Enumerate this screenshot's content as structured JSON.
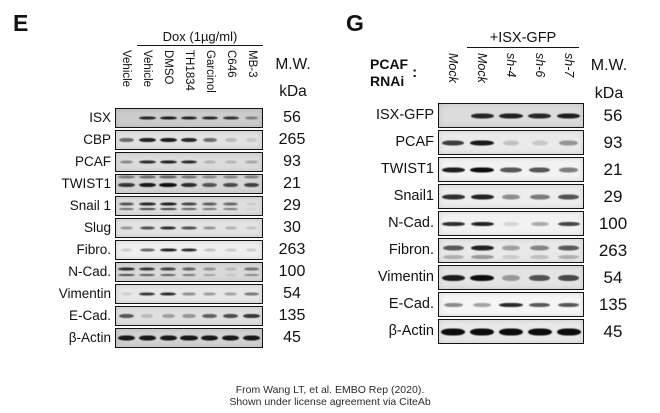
{
  "panels": [
    {
      "label": "E",
      "treatment_header": "Dox (1µg/ml)",
      "mw_header_line1": "M.W.",
      "mw_header_line2": "kDa",
      "lanes": [
        "Vehicle",
        "Vehicle",
        "DMSO",
        "TH1834",
        "Garcinol",
        "C646",
        "MB-3"
      ],
      "rows": [
        {
          "protein": "ISX",
          "mw": "56",
          "bg": "#cccccc",
          "band_h": 3,
          "bands": [
            0,
            0.88,
            0.92,
            0.88,
            0.85,
            0.8,
            0.42
          ]
        },
        {
          "protein": "CBP",
          "mw": "265",
          "bg": "#e2e2e2",
          "band_h": 4,
          "bands": [
            0.55,
            0.9,
            0.93,
            0.88,
            0.55,
            0.18,
            0.12
          ]
        },
        {
          "protein": "PCAF",
          "mw": "93",
          "bg": "#dcdcdc",
          "band_h": 3,
          "bands": [
            0.4,
            0.85,
            0.9,
            0.85,
            0.2,
            0.18,
            0.25
          ]
        },
        {
          "protein": "TWIST1",
          "mw": "21",
          "bg": "#d6d6d6",
          "band_h": 4,
          "bands": [
            0.8,
            0.95,
            1.0,
            0.85,
            0.65,
            0.7,
            0.75
          ],
          "double": [
            55,
            10,
            0.55
          ]
        },
        {
          "protein": "Snail 1",
          "mw": "29",
          "bg": "#dedede",
          "band_h": 3,
          "bands": [
            0.65,
            0.88,
            0.9,
            0.72,
            0.6,
            0.55,
            0.08
          ],
          "double": [
            38,
            68,
            0.85
          ]
        },
        {
          "protein": "Slug",
          "mw": "30",
          "bg": "#e3e3e3",
          "band_h": 3,
          "bands": [
            0.35,
            0.68,
            0.85,
            0.68,
            0.35,
            0.22,
            0.15
          ]
        },
        {
          "protein": "Fibro.",
          "mw": "263",
          "bg": "#efefef",
          "band_h": 3,
          "bands": [
            0.15,
            0.6,
            0.9,
            0.85,
            0.2,
            0.15,
            0.15
          ]
        },
        {
          "protein": "N-Cad.",
          "mw": "100",
          "bg": "#d9d9d9",
          "band_h": 3,
          "bands": [
            0.85,
            0.8,
            0.75,
            0.6,
            0.35,
            0.15,
            0.5
          ],
          "double": [
            35,
            65,
            0.8
          ]
        },
        {
          "protein": "Vimentin",
          "mw": "54",
          "bg": "#e7e7e7",
          "band_h": 3,
          "bands": [
            0.1,
            0.8,
            0.85,
            0.4,
            0.35,
            0.3,
            0.5
          ]
        },
        {
          "protein": "E-Cad.",
          "mw": "135",
          "bg": "#e0e0e0",
          "band_h": 4,
          "bands": [
            0.65,
            0.18,
            0.3,
            0.35,
            0.6,
            0.7,
            0.8
          ]
        },
        {
          "protein": "β-Actin",
          "mw": "45",
          "bg": "#d2d2d2",
          "band_h": 5,
          "bands": [
            0.95,
            0.95,
            0.95,
            0.95,
            0.95,
            0.95,
            0.95
          ]
        }
      ]
    },
    {
      "label": "G",
      "treatment_header": "+ISX-GFP",
      "rnai_label_line1": "PCAF",
      "rnai_label_line2": "RNAi",
      "rnai_colon": ":",
      "mw_header_line1": "M.W.",
      "mw_header_line2": "kDa",
      "lanes": [
        "Mock",
        "Mock",
        "sh-4",
        "sh-6",
        "sh-7"
      ],
      "rows": [
        {
          "protein": "ISX-GFP",
          "mw": "56",
          "bg": "#dcdcdc",
          "band_h": 5,
          "bands": [
            0,
            0.88,
            0.9,
            0.88,
            0.92
          ]
        },
        {
          "protein": "PCAF",
          "mw": "93",
          "bg": "#eaeaea",
          "band_h": 5,
          "bands": [
            0.78,
            0.95,
            0.18,
            0.15,
            0.38
          ]
        },
        {
          "protein": "TWIST1",
          "mw": "21",
          "bg": "#f2f2f2",
          "band_h": 5,
          "bands": [
            0.92,
            1.0,
            0.68,
            0.68,
            0.5
          ]
        },
        {
          "protein": "Snail1",
          "mw": "29",
          "bg": "#ededed",
          "band_h": 5,
          "bands": [
            0.85,
            0.9,
            0.42,
            0.5,
            0.68
          ]
        },
        {
          "protein": "N-Cad.",
          "mw": "100",
          "bg": "#f2f2f2",
          "band_h": 4,
          "bands": [
            0.85,
            0.9,
            0.12,
            0.3,
            0.75
          ]
        },
        {
          "protein": "Fibron.",
          "mw": "263",
          "bg": "#e9e9e9",
          "band_h": 5,
          "bands": [
            0.65,
            0.9,
            0.32,
            0.45,
            0.65
          ],
          "double": [
            40,
            78,
            0.4
          ]
        },
        {
          "protein": "Vimentin",
          "mw": "54",
          "bg": "#e4e4e4",
          "band_h": 6,
          "bands": [
            0.92,
            1.0,
            0.35,
            0.68,
            0.72
          ]
        },
        {
          "protein": "E-Cad.",
          "mw": "135",
          "bg": "#f5f5f5",
          "band_h": 4,
          "bands": [
            0.45,
            0.35,
            0.88,
            0.68,
            0.68
          ]
        },
        {
          "protein": "β-Actin",
          "mw": "45",
          "bg": "#e9e9e9",
          "band_h": 7,
          "bands": [
            1,
            1,
            1,
            1,
            1
          ]
        }
      ]
    }
  ],
  "footer": {
    "line1": "From Wang LT, et al. EMBO Rep (2020).",
    "line2": "Shown under license agreement via CiteAb"
  }
}
